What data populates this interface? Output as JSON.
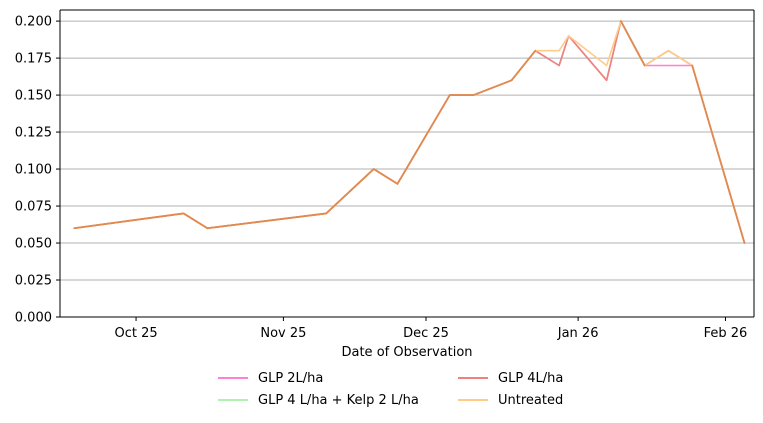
{
  "chart_data": {
    "type": "line",
    "title": "",
    "xlabel": "Date of Observation",
    "ylabel": "",
    "xlim": [
      "2024-10-09",
      "2025-03-04"
    ],
    "ylim": [
      0,
      0.2075
    ],
    "grid": "horizontal",
    "legend_position": "bottom-center",
    "xticks": [
      "2024-10-25",
      "2024-11-25",
      "2024-12-25",
      "2025-01-26",
      "2025-02-26"
    ],
    "xtick_labels": [
      "Oct 25",
      "Nov 25",
      "Dec 25",
      "Jan 26",
      "Feb 26"
    ],
    "yticks": [
      0.0,
      0.025,
      0.05,
      0.075,
      0.1,
      0.125,
      0.15,
      0.175,
      0.2
    ],
    "ytick_labels": [
      "0.000",
      "0.025",
      "0.050",
      "0.075",
      "0.100",
      "0.125",
      "0.150",
      "0.175",
      "0.200"
    ],
    "series": [
      {
        "name": "GLP 2L/ha",
        "color": "#ff7fd0",
        "x": [
          "2024-10-12",
          "2024-11-04",
          "2024-11-09",
          "2024-12-04",
          "2024-12-14",
          "2024-12-19",
          "2024-12-30",
          "2025-01-04",
          "2025-01-12",
          "2025-01-17",
          "2025-01-22",
          "2025-01-24",
          "2025-02-01",
          "2025-02-04",
          "2025-02-09",
          "2025-02-14",
          "2025-02-19",
          "2025-03-02"
        ],
        "values": [
          0.06,
          0.07,
          0.06,
          0.07,
          0.1,
          0.09,
          0.15,
          0.15,
          0.16,
          0.18,
          0.17,
          0.19,
          0.16,
          0.2,
          0.17,
          0.17,
          0.17,
          0.05
        ]
      },
      {
        "name": "GLP 4 L/ha + Kelp 2 L/ha",
        "color": "#b0f0b0",
        "x": [
          "2024-10-12",
          "2024-11-04",
          "2024-11-09",
          "2024-12-04",
          "2024-12-14",
          "2024-12-19",
          "2024-12-30",
          "2025-01-04",
          "2025-01-12",
          "2025-01-17",
          "2025-01-22",
          "2025-01-24",
          "2025-02-01",
          "2025-02-04",
          "2025-02-09",
          "2025-02-14",
          "2025-02-19",
          "2025-03-02"
        ],
        "values": [
          0.06,
          0.07,
          0.06,
          0.07,
          0.1,
          0.09,
          0.15,
          0.15,
          0.16,
          0.18,
          0.17,
          0.19,
          0.16,
          0.2,
          0.17,
          0.18,
          0.17,
          0.05
        ]
      },
      {
        "name": "GLP 4L/ha",
        "color": "#f08080",
        "x": [
          "2024-10-12",
          "2024-11-04",
          "2024-11-09",
          "2024-12-04",
          "2024-12-14",
          "2024-12-19",
          "2024-12-30",
          "2025-01-04",
          "2025-01-12",
          "2025-01-17",
          "2025-01-22",
          "2025-01-24",
          "2025-02-01",
          "2025-02-04",
          "2025-02-09",
          "2025-02-14",
          "2025-02-19",
          "2025-03-02"
        ],
        "values": [
          0.06,
          0.07,
          0.06,
          0.07,
          0.1,
          0.09,
          0.15,
          0.15,
          0.16,
          0.18,
          0.17,
          0.19,
          0.16,
          0.2,
          0.17,
          0.18,
          0.17,
          0.05
        ]
      },
      {
        "name": "Untreated",
        "color": "#ffcc88",
        "x": [
          "2024-10-12",
          "2024-11-04",
          "2024-11-09",
          "2024-12-04",
          "2024-12-14",
          "2024-12-19",
          "2024-12-30",
          "2025-01-04",
          "2025-01-12",
          "2025-01-17",
          "2025-01-22",
          "2025-01-24",
          "2025-02-01",
          "2025-02-04",
          "2025-02-09",
          "2025-02-14",
          "2025-02-19",
          "2025-03-02"
        ],
        "values": [
          0.06,
          0.07,
          0.06,
          0.07,
          0.1,
          0.09,
          0.15,
          0.15,
          0.16,
          0.18,
          0.18,
          0.19,
          0.17,
          0.2,
          0.17,
          0.18,
          0.17,
          0.05
        ]
      }
    ]
  },
  "overlap_color": "#e08a50"
}
